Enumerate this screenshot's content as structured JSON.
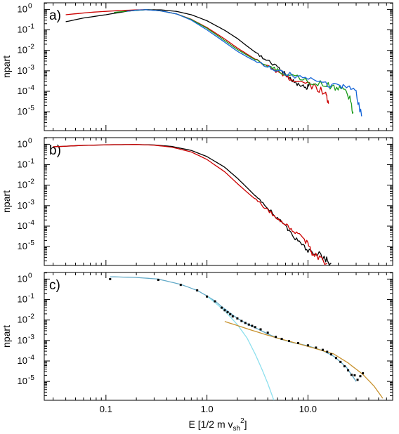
{
  "chart_data": [
    {
      "type": "line",
      "panel_label": "a)",
      "xlabel": "",
      "ylabel": "npart",
      "x_scale": "log",
      "y_scale": "log",
      "xlim": [
        0.0245,
        69
      ],
      "ylim": [
        1.2e-06,
        2.1
      ],
      "show_x_tick_labels": false,
      "series": [
        {
          "color": "#000000",
          "style": "jagged",
          "points": [
            [
              0.04,
              0.25
            ],
            [
              0.06,
              0.38
            ],
            [
              0.1,
              0.55
            ],
            [
              0.17,
              0.85
            ],
            [
              0.25,
              0.97
            ],
            [
              0.35,
              0.95
            ],
            [
              0.5,
              0.8
            ],
            [
              0.7,
              0.55
            ],
            [
              1.0,
              0.28
            ],
            [
              1.5,
              0.095
            ],
            [
              2.0,
              0.038
            ],
            [
              2.5,
              0.016
            ],
            [
              3.2,
              0.0065
            ],
            [
              4.0,
              0.003
            ],
            [
              5.0,
              0.0015
            ],
            [
              6.0,
              0.0007
            ],
            [
              7.0,
              0.00036
            ],
            [
              8.0,
              0.00022
            ],
            [
              9.5,
              0.00016
            ],
            [
              10.5,
              0.00022
            ]
          ]
        },
        {
          "color": "#cc0000",
          "style": "jagged",
          "points": [
            [
              0.04,
              0.55
            ],
            [
              0.07,
              0.72
            ],
            [
              0.12,
              0.85
            ],
            [
              0.2,
              0.95
            ],
            [
              0.25,
              0.97
            ],
            [
              0.35,
              0.85
            ],
            [
              0.5,
              0.6
            ],
            [
              0.7,
              0.33
            ],
            [
              1.0,
              0.13
            ],
            [
              1.5,
              0.036
            ],
            [
              2.0,
              0.013
            ],
            [
              2.5,
              0.0065
            ],
            [
              3.0,
              0.0037
            ],
            [
              4.0,
              0.0017
            ],
            [
              5.0,
              0.0009
            ],
            [
              6.0,
              0.00055
            ],
            [
              7.0,
              0.00038
            ],
            [
              9.0,
              0.00025
            ],
            [
              12.0,
              0.00015
            ],
            [
              15.0,
              8e-05
            ],
            [
              16.0,
              2.5e-05
            ]
          ]
        },
        {
          "color": "#1a9a1a",
          "style": "jagged",
          "points": [
            [
              0.12,
              0.72
            ],
            [
              0.2,
              0.9
            ],
            [
              0.25,
              0.97
            ],
            [
              0.35,
              0.85
            ],
            [
              0.5,
              0.6
            ],
            [
              0.7,
              0.32
            ],
            [
              1.0,
              0.12
            ],
            [
              1.5,
              0.03
            ],
            [
              2.0,
              0.011
            ],
            [
              2.5,
              0.0058
            ],
            [
              3.0,
              0.0035
            ],
            [
              4.0,
              0.0018
            ],
            [
              5.0,
              0.00105
            ],
            [
              7.0,
              0.00055
            ],
            [
              10.0,
              0.00033
            ],
            [
              14.0,
              0.00022
            ],
            [
              18.0,
              0.00015
            ],
            [
              22.0,
              0.0001
            ],
            [
              26.0,
              5e-05
            ],
            [
              28.0,
              1e-05
            ]
          ]
        },
        {
          "color": "#1565d8",
          "style": "jagged",
          "points": [
            [
              0.16,
              0.8
            ],
            [
              0.2,
              0.92
            ],
            [
              0.25,
              0.97
            ],
            [
              0.35,
              0.85
            ],
            [
              0.5,
              0.6
            ],
            [
              0.7,
              0.3
            ],
            [
              1.0,
              0.1
            ],
            [
              1.5,
              0.025
            ],
            [
              2.0,
              0.009
            ],
            [
              2.5,
              0.0048
            ],
            [
              3.0,
              0.003
            ],
            [
              4.0,
              0.0016
            ],
            [
              5.0,
              0.001
            ],
            [
              7.0,
              0.00062
            ],
            [
              10.0,
              0.0004
            ],
            [
              15.0,
              0.00026
            ],
            [
              20.0,
              0.00019
            ],
            [
              25.0,
              0.00014
            ],
            [
              30.0,
              8e-05
            ],
            [
              34.0,
              6e-06
            ]
          ]
        }
      ]
    },
    {
      "type": "line",
      "panel_label": "b)",
      "xlabel": "",
      "ylabel": "npart",
      "x_scale": "log",
      "y_scale": "log",
      "xlim": [
        0.0245,
        69
      ],
      "ylim": [
        1.2e-06,
        2.1
      ],
      "show_x_tick_labels": false,
      "series": [
        {
          "color": "#000000",
          "style": "jagged",
          "points": [
            [
              0.03,
              0.75
            ],
            [
              0.06,
              0.88
            ],
            [
              0.12,
              0.95
            ],
            [
              0.2,
              0.97
            ],
            [
              0.3,
              0.92
            ],
            [
              0.45,
              0.78
            ],
            [
              0.7,
              0.5
            ],
            [
              1.0,
              0.25
            ],
            [
              1.5,
              0.075
            ],
            [
              2.0,
              0.022
            ],
            [
              2.5,
              0.0075
            ],
            [
              3.2,
              0.0022
            ],
            [
              4.0,
              0.00075
            ],
            [
              5.0,
              0.00025
            ],
            [
              6.0,
              9e-05
            ],
            [
              7.0,
              3.5e-05
            ],
            [
              8.5,
              1.3e-05
            ],
            [
              10.0,
              7e-06
            ],
            [
              12.0,
              5e-06
            ],
            [
              15.0,
              2.5e-06
            ],
            [
              17.0,
              1.5e-06
            ]
          ]
        },
        {
          "color": "#cc0000",
          "style": "jagged",
          "points": [
            [
              0.03,
              0.75
            ],
            [
              0.06,
              0.88
            ],
            [
              0.12,
              0.95
            ],
            [
              0.2,
              0.97
            ],
            [
              0.3,
              0.9
            ],
            [
              0.45,
              0.72
            ],
            [
              0.7,
              0.42
            ],
            [
              1.0,
              0.18
            ],
            [
              1.5,
              0.045
            ],
            [
              2.0,
              0.012
            ],
            [
              2.5,
              0.0045
            ],
            [
              3.2,
              0.0016
            ],
            [
              4.0,
              0.0006
            ],
            [
              5.0,
              0.00025
            ],
            [
              6.0,
              0.00012
            ],
            [
              7.0,
              6e-05
            ],
            [
              8.5,
              3e-05
            ],
            [
              10.0,
              1.5e-05
            ],
            [
              11.0,
              5e-06
            ],
            [
              13.0,
              2.5e-06
            ],
            [
              15.5,
              1.5e-06
            ]
          ]
        }
      ]
    },
    {
      "type": "scatter",
      "panel_label": "c)",
      "xlabel": "E [1/2 m v_sh^2]",
      "ylabel": "npart",
      "x_scale": "log",
      "y_scale": "log",
      "xlim": [
        0.0245,
        69
      ],
      "ylim": [
        1.2e-06,
        2.1
      ],
      "show_x_tick_labels": true,
      "x_ticks": [
        {
          "value": 0.1,
          "label": "0.1"
        },
        {
          "value": 1.0,
          "label": "1.0"
        },
        {
          "value": 10.0,
          "label": "10.0"
        }
      ],
      "y_ticks": [
        {
          "value": 1,
          "label": "10",
          "exp": "0"
        },
        {
          "value": 0.1,
          "label": "10",
          "exp": "-1"
        },
        {
          "value": 0.01,
          "label": "10",
          "exp": "-2"
        },
        {
          "value": 0.001,
          "label": "10",
          "exp": "-3"
        },
        {
          "value": 0.0001,
          "label": "10",
          "exp": "-4"
        },
        {
          "value": 1e-05,
          "label": "10",
          "exp": "-5"
        }
      ],
      "series": [
        {
          "color": "#62aac8",
          "style": "smooth",
          "points": [
            [
              0.11,
              1.3
            ],
            [
              0.2,
              1.2
            ],
            [
              0.33,
              1.0
            ],
            [
              0.55,
              0.55
            ],
            [
              0.8,
              0.28
            ],
            [
              1.0,
              0.15
            ],
            [
              1.2,
              0.085
            ],
            [
              1.4,
              0.045
            ],
            [
              1.7,
              0.022
            ],
            [
              2.0,
              0.012
            ],
            [
              2.5,
              0.0065
            ],
            [
              3.0,
              0.0042
            ],
            [
              4.0,
              0.0021
            ],
            [
              5.0,
              0.0013
            ],
            [
              7.0,
              0.0008
            ],
            [
              10.0,
              0.00055
            ],
            [
              14.0,
              0.00032
            ],
            [
              18.0,
              0.00017
            ],
            [
              24.0,
              5e-05
            ],
            [
              30.0,
              1e-05
            ]
          ]
        },
        {
          "color": "#8ee0ee",
          "style": "smooth",
          "points": [
            [
              1.0,
              0.15
            ],
            [
              1.5,
              0.028
            ],
            [
              2.0,
              0.006
            ],
            [
              2.5,
              0.0013
            ],
            [
              3.0,
              0.00022
            ],
            [
              3.5,
              4e-05
            ],
            [
              4.0,
              8e-06
            ],
            [
              4.6,
              1.2e-06
            ]
          ]
        },
        {
          "color": "#c8922e",
          "style": "smooth",
          "points": [
            [
              1.5,
              0.0085
            ],
            [
              3.0,
              0.0028
            ],
            [
              5.0,
              0.0013
            ],
            [
              8.0,
              0.0007
            ],
            [
              12.0,
              0.0004
            ],
            [
              18.0,
              0.00022
            ],
            [
              25.0,
              8e-05
            ],
            [
              35.0,
              2.2e-05
            ],
            [
              45.0,
              6e-06
            ],
            [
              55.0,
              1.5e-06
            ]
          ]
        },
        {
          "color": "#000000",
          "style": "dots",
          "points": [
            [
              0.11,
              1.0
            ],
            [
              0.33,
              0.92
            ],
            [
              0.55,
              0.52
            ],
            [
              0.8,
              0.28
            ],
            [
              1.0,
              0.14
            ],
            [
              1.2,
              0.082
            ],
            [
              1.4,
              0.04
            ],
            [
              1.5,
              0.03
            ],
            [
              1.6,
              0.024
            ],
            [
              1.7,
              0.019
            ],
            [
              1.8,
              0.015
            ],
            [
              2.0,
              0.012
            ],
            [
              2.2,
              0.009
            ],
            [
              2.4,
              0.0072
            ],
            [
              2.6,
              0.006
            ],
            [
              2.8,
              0.0052
            ],
            [
              3.0,
              0.0045
            ],
            [
              3.4,
              0.0035
            ],
            [
              4.0,
              0.0024
            ],
            [
              4.8,
              0.0015
            ],
            [
              5.5,
              0.0012
            ],
            [
              6.5,
              0.00095
            ],
            [
              8.0,
              0.00075
            ],
            [
              10.0,
              0.00058
            ],
            [
              12.0,
              0.00045
            ],
            [
              14.0,
              0.00035
            ],
            [
              15.5,
              0.00028
            ],
            [
              17.0,
              0.00021
            ],
            [
              19.0,
              0.00014
            ],
            [
              21.0,
              9e-05
            ],
            [
              23.0,
              5.5e-05
            ],
            [
              25.0,
              3.5e-05
            ],
            [
              27.0,
              2.1e-05
            ],
            [
              29.0,
              2e-05
            ],
            [
              31.0,
              1.2e-05
            ],
            [
              33.0,
              1.8e-05
            ],
            [
              35.0,
              2.5e-05
            ]
          ]
        }
      ]
    }
  ]
}
